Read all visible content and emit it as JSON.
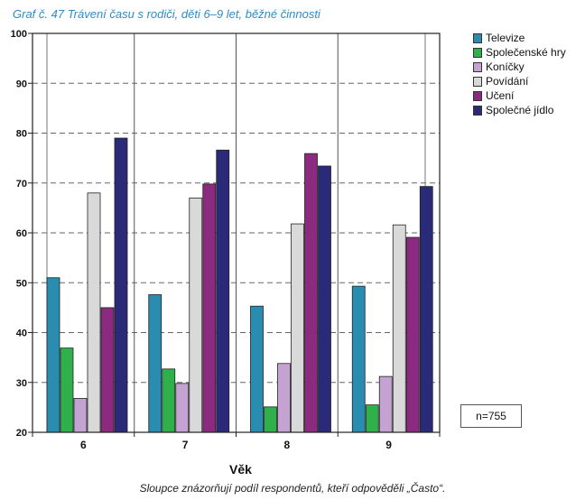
{
  "chart_data": {
    "type": "bar",
    "title": "Graf č. 47 Trávení času s rodiči, děti 6–9 let, běžné činnosti",
    "xlabel": "Věk",
    "ylabel": "",
    "categories": [
      "6",
      "7",
      "8",
      "9"
    ],
    "ylim": [
      20,
      100
    ],
    "yticks": [
      "20",
      "30",
      "40",
      "50",
      "60",
      "70",
      "80",
      "90",
      "100"
    ],
    "grid": true,
    "legend_position": "right",
    "series": [
      {
        "name": "Televize",
        "color": "#2a8db0",
        "values": [
          51,
          47.6,
          45.3,
          49.3
        ]
      },
      {
        "name": "Společenské hry",
        "color": "#2fb04a",
        "values": [
          36.9,
          32.7,
          25.1,
          25.5
        ]
      },
      {
        "name": "Koníčky",
        "color": "#c4a3d2",
        "values": [
          26.8,
          29.8,
          33.8,
          31.2
        ]
      },
      {
        "name": "Povídání",
        "color": "#d9d9d9",
        "values": [
          68,
          67,
          61.8,
          61.6
        ]
      },
      {
        "name": "Učení",
        "color": "#8b2a7e",
        "values": [
          45,
          69.8,
          75.9,
          59.1
        ]
      },
      {
        "name": "Společné jídlo",
        "color": "#2a2a78",
        "values": [
          79,
          76.6,
          73.4,
          69.3
        ]
      }
    ],
    "annotation": "n=755",
    "footnote": "Sloupce znázorňují podíl respondentů, kteří odpověděli „Často“."
  }
}
